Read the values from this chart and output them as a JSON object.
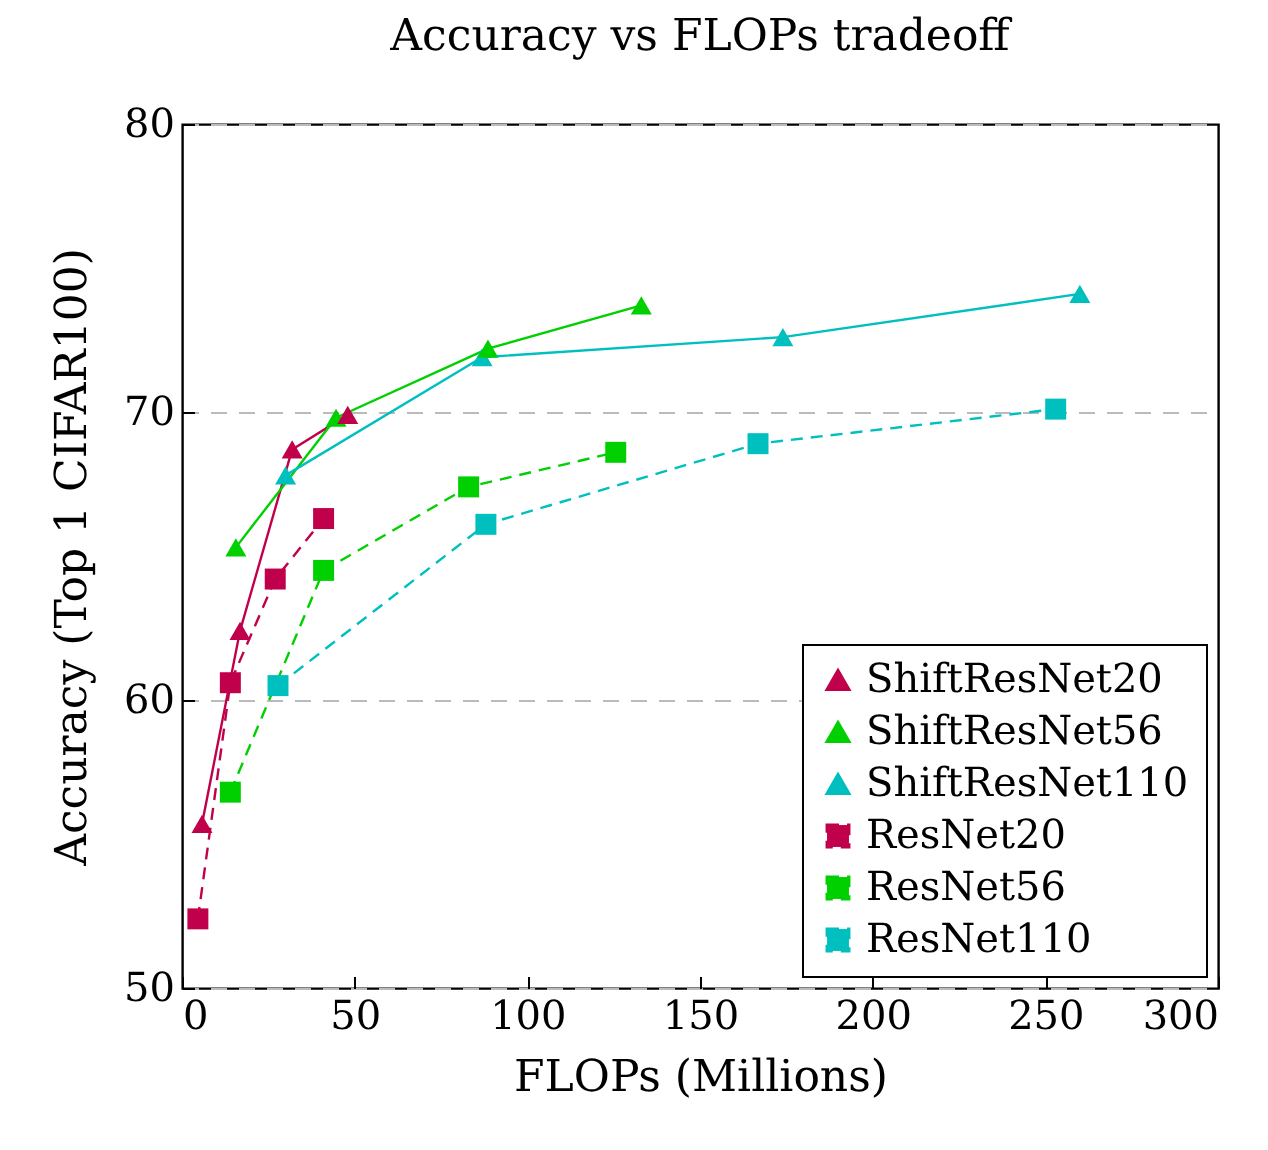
{
  "chart_data": {
    "type": "line",
    "title": "Accuracy vs FLOPs tradeoff",
    "xlabel": "FLOPs (Millions)",
    "ylabel": "Accuracy (Top 1 CIFAR100)",
    "xlim": [
      0,
      300
    ],
    "xticks": [
      0,
      50,
      100,
      150,
      200,
      250,
      300
    ],
    "ylim": [
      50,
      80
    ],
    "yticks": [
      50,
      60,
      70,
      80
    ],
    "grid": "y",
    "legend": "bottom right",
    "series": [
      {
        "name": "ShiftResNet20",
        "color": "#c0004a",
        "marker": "triangle",
        "line_style": "solid",
        "x": [
          5.8,
          16.8,
          31.9,
          48
        ],
        "values": [
          55.7,
          62.4,
          68.7,
          69.9
        ]
      },
      {
        "name": "ShiftResNet56",
        "color": "#00d000",
        "marker": "triangle",
        "line_style": "solid",
        "x": [
          15.6,
          44.6,
          88.6,
          133
        ],
        "values": [
          65.3,
          69.8,
          72.2,
          73.7
        ]
      },
      {
        "name": "ShiftResNet110",
        "color": "#00bfbf",
        "marker": "triangle",
        "line_style": "solid",
        "x": [
          30,
          86.9,
          174,
          260
        ],
        "values": [
          67.8,
          71.9,
          72.6,
          74.1
        ]
      },
      {
        "name": "ResNet20",
        "color": "#c0004a",
        "marker": "square",
        "line_style": "dashed",
        "x": [
          4.6,
          14,
          27,
          41
        ],
        "values": [
          52.4,
          60.6,
          64.2,
          66.3
        ]
      },
      {
        "name": "ResNet56",
        "color": "#00d000",
        "marker": "square",
        "line_style": "dashed",
        "x": [
          14,
          41,
          83,
          125.6
        ],
        "values": [
          56.8,
          64.5,
          67.4,
          68.6
        ]
      },
      {
        "name": "ResNet110",
        "color": "#00bfbf",
        "marker": "square",
        "line_style": "dashed",
        "x": [
          27.8,
          88,
          166.8,
          253
        ],
        "values": [
          60.5,
          66.1,
          68.9,
          70.1
        ]
      }
    ]
  }
}
